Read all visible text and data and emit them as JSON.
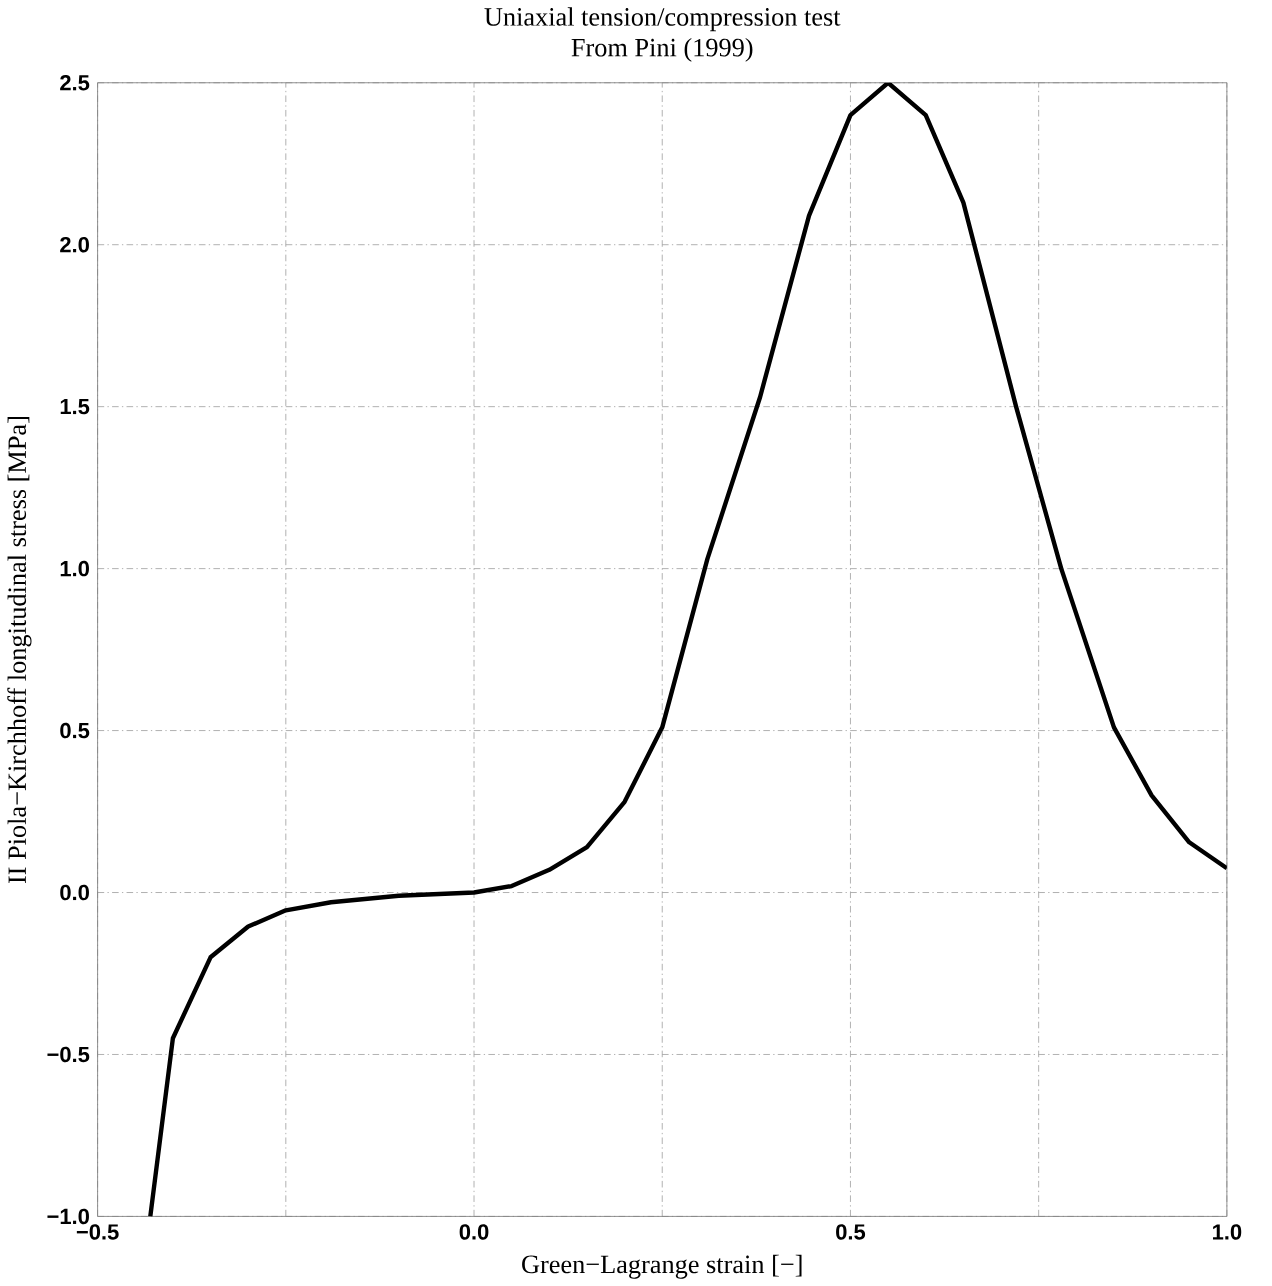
{
  "chart_data": {
    "type": "line",
    "title": "Uniaxial tension/compression test",
    "subtitle": "From Pini (1999)",
    "xlabel": "Green−Lagrange strain [−]",
    "ylabel": "II Piola−Kirchhoff longitudinal stress [MPa]",
    "xlim": [
      -0.5,
      1.0
    ],
    "ylim": [
      -1.0,
      2.5
    ],
    "xticks": [
      {
        "value": -0.5,
        "label": "−0.5"
      },
      {
        "value": -0.25,
        "label": null
      },
      {
        "value": 0.0,
        "label": "0.0"
      },
      {
        "value": 0.25,
        "label": null
      },
      {
        "value": 0.5,
        "label": "0.5"
      },
      {
        "value": 0.75,
        "label": null
      },
      {
        "value": 1.0,
        "label": "1.0"
      }
    ],
    "yticks": [
      {
        "value": -1.0,
        "label": "−1.0"
      },
      {
        "value": -0.5,
        "label": "−0.5"
      },
      {
        "value": 0.0,
        "label": "0.0"
      },
      {
        "value": 0.5,
        "label": "0.5"
      },
      {
        "value": 1.0,
        "label": "1.0"
      },
      {
        "value": 1.5,
        "label": "1.5"
      },
      {
        "value": 2.0,
        "label": "2.0"
      },
      {
        "value": 2.5,
        "label": "2.5"
      }
    ],
    "grid": true,
    "marker": "none",
    "line_style": "solid",
    "series": [
      {
        "color": "#000000",
        "x": [
          -0.43,
          -0.4,
          -0.35,
          -0.3,
          -0.25,
          -0.19,
          -0.1,
          0.0,
          0.05,
          0.1,
          0.15,
          0.2,
          0.25,
          0.31,
          0.38,
          0.445,
          0.5,
          0.55,
          0.6,
          0.65,
          0.72,
          0.78,
          0.85,
          0.9,
          0.95,
          1.0
        ],
        "values": [
          -1.0,
          -0.45,
          -0.2,
          -0.105,
          -0.055,
          -0.03,
          -0.01,
          0.0,
          0.02,
          0.07,
          0.14,
          0.28,
          0.51,
          1.03,
          1.53,
          2.09,
          2.4,
          2.5,
          2.4,
          2.13,
          1.5,
          1.0,
          0.51,
          0.3,
          0.155,
          0.075
        ]
      }
    ]
  }
}
